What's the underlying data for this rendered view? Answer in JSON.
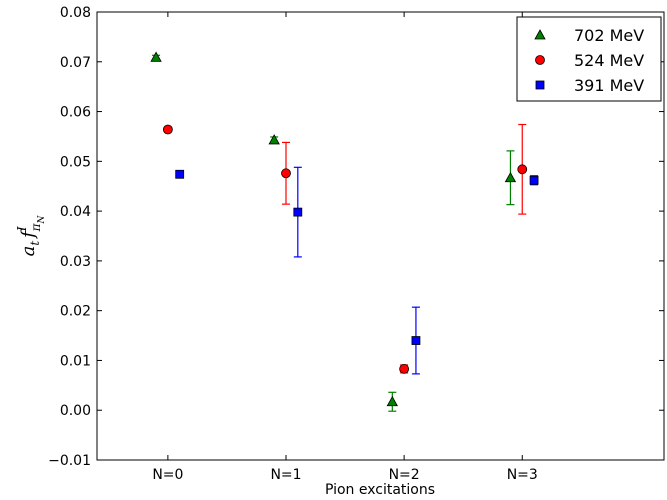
{
  "chart_data": {
    "type": "scatter",
    "xlabel": "Pion excitations",
    "ylabel": {
      "main": "a",
      "sub1": "t",
      "f": "f",
      "sup": "I",
      "sub2": "π",
      "sub3": "N"
    },
    "categories": [
      "N=0",
      "N=1",
      "N=2",
      "N=3"
    ],
    "ylim": [
      -0.01,
      0.08
    ],
    "yticks": [
      -0.01,
      0.0,
      0.01,
      0.02,
      0.03,
      0.04,
      0.05,
      0.06,
      0.07,
      0.08
    ],
    "ytick_labels": [
      "−0.01",
      "0.00",
      "0.01",
      "0.02",
      "0.03",
      "0.04",
      "0.05",
      "0.06",
      "0.07",
      "0.08"
    ],
    "grid": false,
    "legend_position": "top-right",
    "series": [
      {
        "name": "702 MeV",
        "marker": "triangle",
        "color": "#008000",
        "points": [
          {
            "category": "N=0",
            "y": 0.0709,
            "err": 0.0004
          },
          {
            "category": "N=1",
            "y": 0.0543,
            "err": 0.0006
          },
          {
            "category": "N=2",
            "y": 0.0017,
            "err": 0.0019
          },
          {
            "category": "N=3",
            "y": 0.0467,
            "err": 0.0054
          }
        ]
      },
      {
        "name": "524 MeV",
        "marker": "circle",
        "color": "#ff0000",
        "points": [
          {
            "category": "N=0",
            "y": 0.0564,
            "err": 0.0003
          },
          {
            "category": "N=1",
            "y": 0.0476,
            "err": 0.0062
          },
          {
            "category": "N=2",
            "y": 0.0083,
            "err": 0.0008
          },
          {
            "category": "N=3",
            "y": 0.0484,
            "err": 0.009
          }
        ]
      },
      {
        "name": "391 MeV",
        "marker": "square",
        "color": "#0000ff",
        "points": [
          {
            "category": "N=0",
            "y": 0.0474,
            "err": 0.0007
          },
          {
            "category": "N=1",
            "y": 0.0398,
            "err": 0.009
          },
          {
            "category": "N=2",
            "y": 0.014,
            "err": 0.0067
          },
          {
            "category": "N=3",
            "y": 0.0462,
            "err": 0.0009
          }
        ]
      }
    ]
  }
}
